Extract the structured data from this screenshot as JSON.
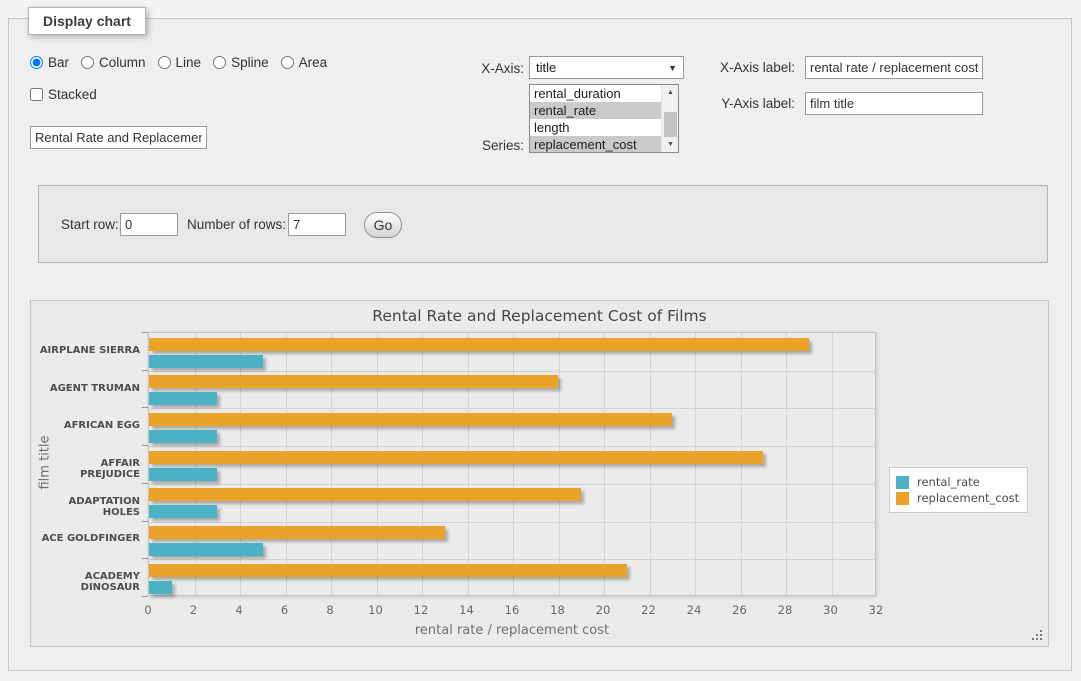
{
  "panel": {
    "tab_label": "Display chart"
  },
  "chart_type": {
    "options": [
      "Bar",
      "Column",
      "Line",
      "Spline",
      "Area"
    ],
    "selected": "Bar"
  },
  "stacked": {
    "label": "Stacked",
    "checked": false
  },
  "title_input": {
    "value": "Rental Rate and Replacement Cost of Films"
  },
  "x_axis": {
    "label": "X-Axis:",
    "selected": "title"
  },
  "series_select": {
    "label": "Series:",
    "options": [
      {
        "label": "rental_duration",
        "selected": false
      },
      {
        "label": "rental_rate",
        "selected": true
      },
      {
        "label": "length",
        "selected": false
      },
      {
        "label": "replacement_cost",
        "selected": true
      }
    ]
  },
  "x_axis_label": {
    "label": "X-Axis label:",
    "value": "rental rate / replacement cost"
  },
  "y_axis_label": {
    "label": "Y-Axis label:",
    "value": "film title"
  },
  "pager": {
    "start_row_label": "Start row:",
    "start_row_value": "0",
    "num_rows_label": "Number of rows:",
    "num_rows_value": "7",
    "go_label": "Go"
  },
  "chart_data": {
    "type": "bar",
    "orientation": "horizontal",
    "title": "Rental Rate and Replacement Cost of Films",
    "xlabel": "rental rate / replacement cost",
    "ylabel": "film title",
    "categories": [
      "AIRPLANE SIERRA",
      "AGENT TRUMAN",
      "AFRICAN EGG",
      "AFFAIR PREJUDICE",
      "ADAPTATION HOLES",
      "ACE GOLDFINGER",
      "ACADEMY DINOSAUR"
    ],
    "series": [
      {
        "name": "rental_rate",
        "color": "#4bb2c5",
        "values": [
          4.99,
          2.99,
          2.99,
          2.99,
          2.99,
          4.99,
          0.99
        ]
      },
      {
        "name": "replacement_cost",
        "color": "#EAA228",
        "values": [
          28.99,
          17.99,
          22.99,
          26.99,
          18.99,
          12.99,
          20.99
        ]
      }
    ],
    "xlim": [
      0,
      32
    ],
    "xtick_step": 2,
    "grid": true,
    "legend_position": "right",
    "group_bar_order": [
      "replacement_cost",
      "rental_rate"
    ]
  }
}
